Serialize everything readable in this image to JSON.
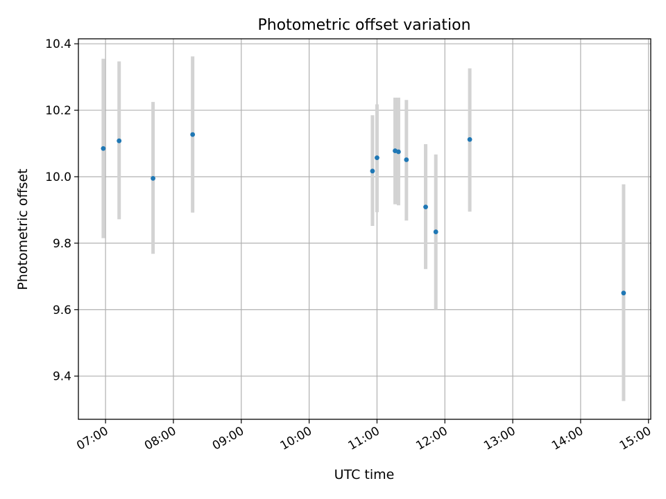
{
  "chart_data": {
    "type": "scatter",
    "title": "Photometric offset variation",
    "xlabel": "UTC time",
    "ylabel": "Photometric offset",
    "xlim": [
      "06:36",
      "15:02"
    ],
    "ylim": [
      9.27,
      10.415
    ],
    "grid": true,
    "x_ticks": [
      "07:00",
      "08:00",
      "09:00",
      "10:00",
      "11:00",
      "12:00",
      "13:00",
      "14:00",
      "15:00"
    ],
    "y_ticks": [
      "9.4",
      "9.6",
      "9.8",
      "10.0",
      "10.2",
      "10.4"
    ],
    "colors": {
      "point": "#1f77b4",
      "errorbar": "#d3d3d3",
      "grid": "#b0b0b0"
    },
    "points": [
      {
        "x": "06:58",
        "y": 10.085,
        "ylo": 9.815,
        "yhi": 10.355
      },
      {
        "x": "07:12",
        "y": 10.108,
        "ylo": 9.872,
        "yhi": 10.347
      },
      {
        "x": "07:42",
        "y": 9.995,
        "ylo": 9.768,
        "yhi": 10.225
      },
      {
        "x": "08:17",
        "y": 10.127,
        "ylo": 9.892,
        "yhi": 10.362
      },
      {
        "x": "10:56",
        "y": 10.017,
        "ylo": 9.852,
        "yhi": 10.185
      },
      {
        "x": "11:00",
        "y": 10.057,
        "ylo": 9.893,
        "yhi": 10.218
      },
      {
        "x": "11:16",
        "y": 10.078,
        "ylo": 9.917,
        "yhi": 10.238
      },
      {
        "x": "11:19",
        "y": 10.075,
        "ylo": 9.914,
        "yhi": 10.238
      },
      {
        "x": "11:26",
        "y": 10.051,
        "ylo": 9.868,
        "yhi": 10.231
      },
      {
        "x": "11:43",
        "y": 9.909,
        "ylo": 9.722,
        "yhi": 10.098
      },
      {
        "x": "11:52",
        "y": 9.834,
        "ylo": 9.6,
        "yhi": 10.067
      },
      {
        "x": "12:22",
        "y": 10.112,
        "ylo": 9.895,
        "yhi": 10.326
      },
      {
        "x": "14:38",
        "y": 9.65,
        "ylo": 9.325,
        "yhi": 9.977
      }
    ]
  }
}
